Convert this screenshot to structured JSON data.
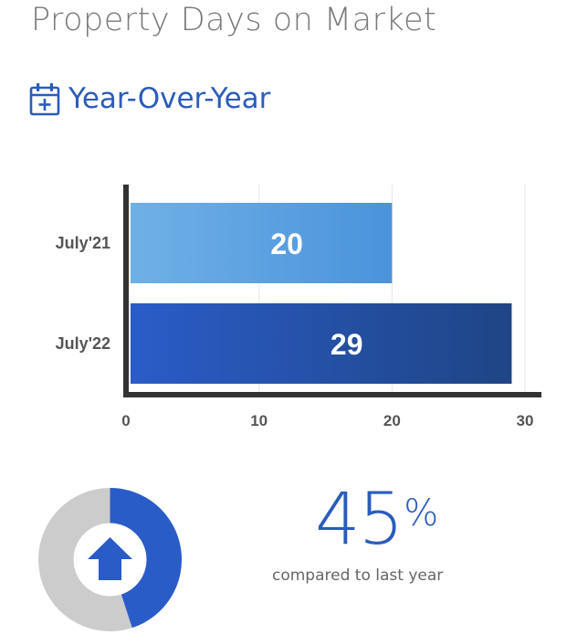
{
  "title": "Property Days on Market",
  "subtitle": "Year-Over-Year",
  "icons": {
    "subtitle_icon": "calendar-plus-icon",
    "change_icon": "arrow-up-icon"
  },
  "colors": {
    "accent": "#2a5cbd",
    "bar_2021": [
      "#6fb0e6",
      "#4a93dc"
    ],
    "bar_2022": [
      "#2a5cc8",
      "#1f4585"
    ],
    "donut_fill": "#2a5cc8",
    "donut_track": "#cccccc"
  },
  "chart_data": {
    "type": "bar",
    "orientation": "horizontal",
    "categories": [
      "July'21",
      "July'22"
    ],
    "values": [
      20,
      29
    ],
    "xlim": [
      0,
      30
    ],
    "xticks": [
      "0",
      "10",
      "20",
      "30"
    ],
    "data_labels": [
      "20",
      "29"
    ],
    "grid": true
  },
  "change": {
    "percent": 45,
    "value": "45",
    "sign": "%",
    "caption": "compared to last year",
    "direction": "up"
  }
}
